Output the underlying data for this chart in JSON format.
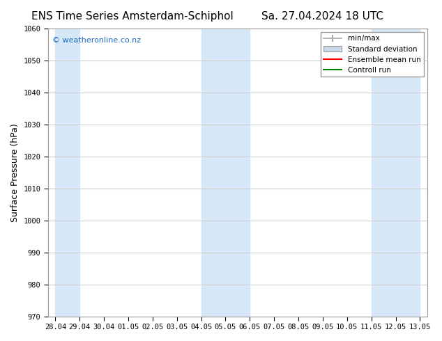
{
  "title_left": "ENS Time Series Amsterdam-Schiphol",
  "title_right": "Sa. 27.04.2024 18 UTC",
  "ylabel": "Surface Pressure (hPa)",
  "ylim": [
    970,
    1060
  ],
  "yticks": [
    970,
    980,
    990,
    1000,
    1010,
    1020,
    1030,
    1040,
    1050,
    1060
  ],
  "xtick_labels": [
    "28.04",
    "29.04",
    "30.04",
    "01.05",
    "02.05",
    "03.05",
    "04.05",
    "05.05",
    "06.05",
    "07.05",
    "08.05",
    "09.05",
    "10.05",
    "11.05",
    "12.05",
    "13.05"
  ],
  "shaded_bands": [
    [
      "28.04",
      "29.04"
    ],
    [
      "04.05",
      "06.05"
    ],
    [
      "11.05",
      "13.05"
    ]
  ],
  "shaded_color": "#d6e8f7",
  "watermark_text": "© weatheronline.co.nz",
  "watermark_color": "#1a6abf",
  "legend_minmax_color": "#aaaaaa",
  "legend_std_facecolor": "#c8d8e8",
  "legend_std_edgecolor": "#999999",
  "legend_ens_color": "red",
  "legend_ctrl_color": "green",
  "bg_color": "#ffffff",
  "plot_bg_color": "#ffffff",
  "grid_color": "#cccccc",
  "tick_label_size": 7.5,
  "title_fontsize": 11,
  "ylabel_fontsize": 9,
  "spine_color": "#999999"
}
